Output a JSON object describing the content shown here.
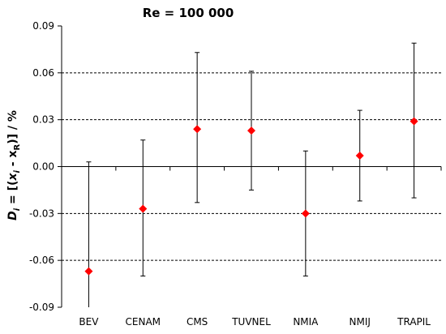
{
  "chart_data": {
    "type": "scatter",
    "title": "Re = 100 000",
    "ylabel": "D_i = [(x_i - x_R)] / %",
    "ylabel_parts": {
      "d": "D",
      "i1": "i",
      "eq": " = [(",
      "x1": "x",
      "i2": "i",
      "minus": " - ",
      "x2": "x",
      "r": "R",
      "close": ")]  / %"
    },
    "xlabel": "",
    "ylim": [
      -0.09,
      0.09
    ],
    "yticks": [
      "-0.09",
      "-0.06",
      "-0.03",
      "0.00",
      "0.03",
      "0.06",
      "0.09"
    ],
    "ytick_values": [
      -0.09,
      -0.06,
      -0.03,
      0.0,
      0.03,
      0.06,
      0.09
    ],
    "categories": [
      "BEV",
      "CENAM",
      "CMS",
      "TUVNEL",
      "NMIA",
      "NMIJ",
      "TRAPIL"
    ],
    "values": [
      -0.067,
      -0.027,
      0.024,
      0.023,
      -0.03,
      0.007,
      0.029
    ],
    "error_low": [
      -0.091,
      -0.07,
      -0.023,
      -0.015,
      -0.07,
      -0.022,
      -0.02
    ],
    "error_high": [
      0.003,
      0.017,
      0.073,
      0.061,
      0.01,
      0.036,
      0.079
    ],
    "dashed_gridlines": [
      -0.06,
      -0.03,
      0.03,
      0.06
    ],
    "marker": "diamond",
    "marker_color": "#ff0000",
    "errorbar_color": "#000000"
  }
}
